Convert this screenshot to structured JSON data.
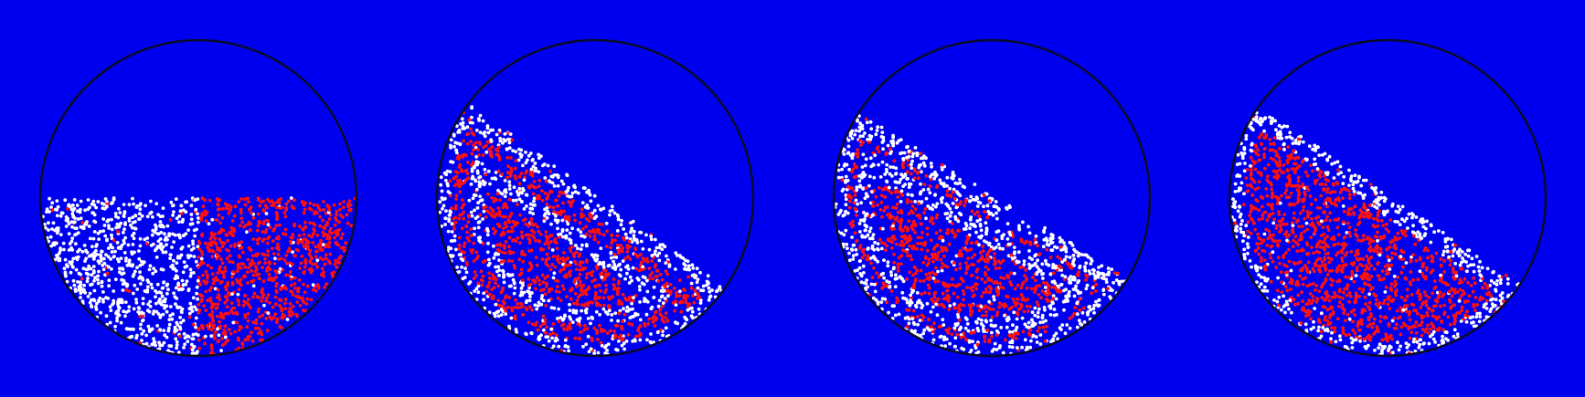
{
  "figure": {
    "background_color": "#0000f0",
    "outline_color": "#0a0a2a",
    "particle_colors": {
      "species_a": "#ffffff",
      "species_b": "#ff1010"
    },
    "panels": [
      {
        "name": "initial-state",
        "pattern": "left-right-split",
        "fill_level": 0.5
      },
      {
        "name": "rotated-state-1",
        "pattern": "layered-bands",
        "fill_level": 0.5
      },
      {
        "name": "rotated-state-2",
        "pattern": "layered-bands",
        "fill_level": 0.5
      },
      {
        "name": "rotated-state-3",
        "pattern": "segregated-core",
        "fill_level": 0.5
      }
    ]
  }
}
